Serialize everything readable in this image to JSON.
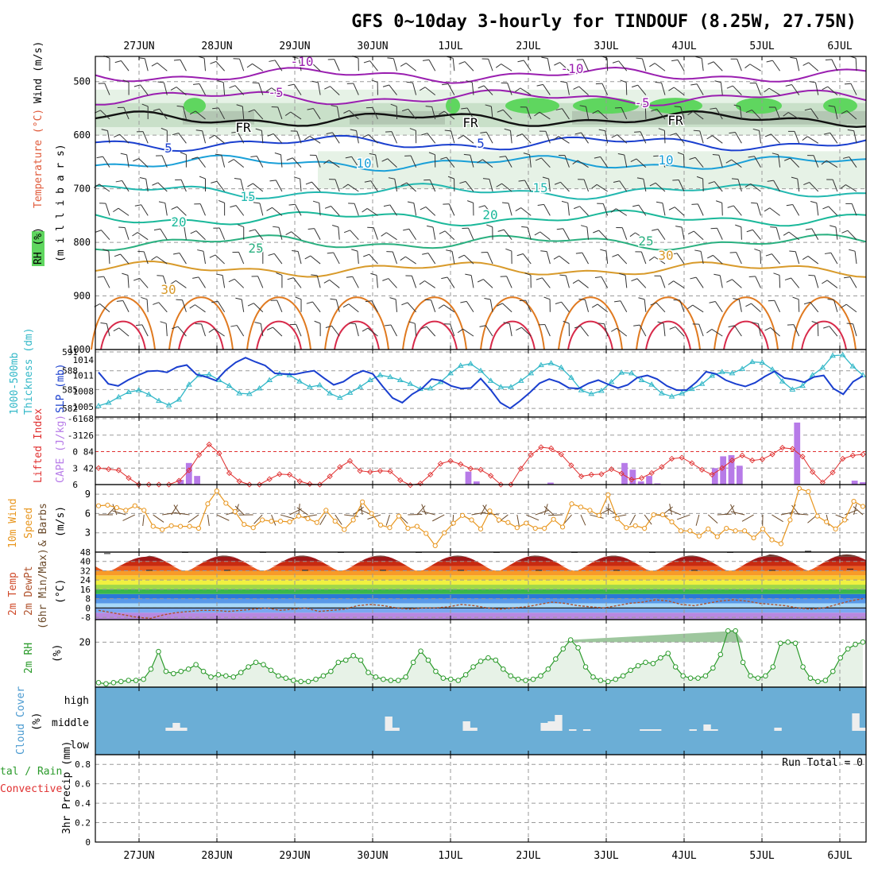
{
  "title": "GFS 0~10day 3-hourly for TINDOUF (8.25W, 27.75N)",
  "date_labels": [
    "27JUN",
    "28JUN",
    "29JUN",
    "30JUN",
    "1JUL",
    "2JUL",
    "3JUL",
    "4JUL",
    "5JUL",
    "6JUL"
  ],
  "colors": {
    "grid": "#9a9a9a",
    "rh_light": "#e6f2e6",
    "rh_mid": "#c9e0c9",
    "rh_dark": "#a9bca9",
    "rh_green": "#5fd65f",
    "cloud_bg": "#6baed6",
    "cloud_bar": "#eeeeee",
    "lifted_index": "#e03030",
    "cape": "#b77be8",
    "thickness": "#33b8c8",
    "slp": "#1a3fcf",
    "wind10m": "#e8961e",
    "barb": "#6b4a2a",
    "rh2m": "#2a9a2a",
    "rh2m_fill": "#e7f2e7",
    "dewpoint": "#b0502a"
  },
  "panel_labels": {
    "upper_rh": "RH (%)",
    "upper_temp": "Temperature (°C)",
    "upper_wind": "Wind (m/s)",
    "upper_axis": "(m i l l i b a r s)",
    "thick_a": "1000-500mb",
    "thick_b": "Thickness (dm)",
    "slp": "SLP (mb)",
    "li": "Lifted Index",
    "cape": "CAPE (J/kg)",
    "wind_a": "10m Wind",
    "wind_b": "Speed",
    "wind_c": "& Barbs",
    "wind_unit": "(m/s)",
    "temp_a": "2m Temp",
    "temp_b": "2m DewPt",
    "temp_c": "(6hr Min/Max)",
    "temp_unit": "(°C)",
    "rh2m": "2m RH",
    "rh2m_unit": "(%)",
    "cloud": "Cloud Cover",
    "cloud_unit": "(%)",
    "precip_a": "tal / Rain",
    "precip_b": "Convective",
    "precip_c": "3hr Precip (mm)",
    "run_total": "Run Total = 0"
  },
  "chart_data": [
    {
      "type": "line",
      "panel": "upper-air cross section",
      "ylabel": "(millibars)",
      "y_ticks": [
        500,
        600,
        700,
        800,
        900,
        1000
      ],
      "ylim": [
        1000,
        450
      ],
      "x": [
        "27JUN",
        "28JUN",
        "29JUN",
        "30JUN",
        "1JUL",
        "2JUL",
        "3JUL",
        "4JUL",
        "5JUL",
        "6JUL"
      ],
      "isotherm_labels": [
        "-10",
        "-10",
        "-5",
        "-5",
        "FR",
        "FR",
        "FR",
        "5",
        "5",
        "10",
        "10",
        "15",
        "15",
        "20",
        "20",
        "25",
        "25",
        "30",
        "30",
        "30",
        "30",
        "30",
        "30",
        "30"
      ],
      "isotherms_mb": [
        {
          "name": "-10",
          "level": 488
        },
        {
          "name": "-5",
          "level": 530
        },
        {
          "name": "FR",
          "level": 570
        },
        {
          "name": "5",
          "level": 615
        },
        {
          "name": "10",
          "level": 652
        },
        {
          "name": "15",
          "level": 705
        },
        {
          "name": "20",
          "level": 755
        },
        {
          "name": "25",
          "level": 800
        },
        {
          "name": "30",
          "level": 850
        }
      ]
    },
    {
      "type": "line",
      "panel": "thickness and SLP",
      "ylabel": "1000-500mb Thickness (dm) / SLP (mb)",
      "left_ticks": [
        "591",
        "588",
        "585",
        "582"
      ],
      "right_ticks": [
        "1014",
        "1011",
        "1008",
        "1005"
      ],
      "series": [
        {
          "name": "Thickness",
          "values": [
            582.4,
            582.9,
            583.8,
            584.6,
            584.9,
            584.2,
            583.2,
            582.5,
            583.4,
            585.8,
            587.3,
            587.4,
            586.5,
            585.6,
            584.4,
            584.3,
            585.2,
            586.5,
            587.5,
            587.3,
            586.3,
            585.4,
            585.7,
            584.4,
            583.7,
            584.5,
            585.4,
            586.5,
            587.3,
            587.0,
            586.5,
            585.9,
            585.1,
            585.2,
            586.2,
            587.6,
            588.8,
            589.1,
            588.0,
            586.4,
            585.4,
            585.4,
            586.4,
            587.6,
            588.9,
            589.2,
            588.5,
            586.9,
            584.9,
            584.3,
            584.8,
            586.2,
            587.7,
            587.6,
            586.5,
            585.8,
            584.4,
            583.9,
            584.4,
            585.1,
            585.9,
            587.2,
            587.8,
            587.6,
            588.3,
            589.4,
            589.3,
            588.2,
            586.3,
            585.0,
            585.6,
            587.3,
            588.5,
            590.4,
            590.5,
            588.7,
            587.3
          ]
        },
        {
          "name": "SLP",
          "values": [
            1011.6,
            1009.4,
            1009.0,
            1010.1,
            1011.0,
            1011.8,
            1011.9,
            1011.6,
            1012.6,
            1013.0,
            1011.2,
            1010.7,
            1010.0,
            1012.0,
            1013.5,
            1014.4,
            1013.6,
            1012.9,
            1011.4,
            1011.3,
            1011.2,
            1011.6,
            1011.9,
            1010.5,
            1009.2,
            1009.8,
            1011.1,
            1011.9,
            1011.3,
            1008.9,
            1006.7,
            1005.8,
            1007.4,
            1008.5,
            1010.3,
            1010.0,
            1009.0,
            1008.5,
            1008.6,
            1010.4,
            1008.3,
            1005.8,
            1004.7,
            1006.1,
            1007.7,
            1009.5,
            1010.3,
            1009.7,
            1008.6,
            1008.5,
            1009.5,
            1010.1,
            1009.3,
            1008.6,
            1009.2,
            1010.6,
            1011.0,
            1010.3,
            1009.0,
            1008.2,
            1008.2,
            1009.7,
            1011.7,
            1011.3,
            1010.1,
            1009.4,
            1008.9,
            1009.6,
            1010.8,
            1011.8,
            1010.5,
            1010.2,
            1009.7,
            1010.7,
            1011.0,
            1008.5,
            1007.4,
            1009.8,
            1010.9
          ]
        }
      ]
    },
    {
      "type": "bar",
      "panel": "lifted index and CAPE",
      "ylabel": "Lifted Index / CAPE (J/kg)",
      "left_ticks": [
        "-6",
        "-3",
        "0",
        "3",
        "6"
      ],
      "right_ticks": [
        "168",
        "126",
        "84",
        "42"
      ],
      "li_range": [
        -6,
        6
      ],
      "cape_range": [
        0,
        168
      ],
      "lifted_index": [
        3.0,
        3.2,
        3.4,
        4.8,
        6.0,
        6.0,
        6.0,
        6.0,
        5.3,
        3.4,
        0.6,
        -1.3,
        0.3,
        3.9,
        5.4,
        6.0,
        6.0,
        5.0,
        4.1,
        4.2,
        5.4,
        5.9,
        6.0,
        4.5,
        2.8,
        1.7,
        3.5,
        3.7,
        3.5,
        3.6,
        5.2,
        6.1,
        5.8,
        4.2,
        2.2,
        1.7,
        2.3,
        3.1,
        3.3,
        4.4,
        6.0,
        6.0,
        3.1,
        0.6,
        -0.8,
        -0.6,
        0.5,
        2.5,
        4.5,
        4.2,
        4.1,
        3.2,
        4.0,
        5.1,
        4.8,
        3.9,
        2.8,
        1.3,
        1.1,
        2.1,
        3.3,
        4.2,
        3.0,
        1.6,
        0.7,
        1.6,
        1.4,
        0.5,
        -0.7,
        -0.5,
        0.9,
        3.7,
        5.6,
        3.8,
        1.3,
        0.7,
        0.5
      ],
      "cape": [
        0,
        0,
        0,
        0,
        0,
        0,
        0,
        0,
        0,
        0,
        12,
        55,
        22,
        0,
        0,
        0,
        0,
        0,
        0,
        0,
        0,
        0,
        0,
        0,
        0,
        0,
        0,
        0,
        0,
        0,
        0,
        0,
        0,
        0,
        0,
        0,
        0,
        0,
        0,
        0,
        0,
        0,
        0,
        0,
        0,
        33,
        8,
        0,
        0,
        0,
        0,
        0,
        0,
        0,
        0,
        5,
        0,
        0,
        0,
        0,
        0,
        0,
        0,
        0,
        55,
        38,
        8,
        22,
        3,
        0,
        0,
        0,
        0,
        0,
        0,
        42,
        72,
        75,
        48,
        0,
        0,
        0,
        0,
        0,
        0,
        158,
        0,
        0,
        0,
        0,
        0,
        0,
        10,
        6
      ]
    },
    {
      "type": "line",
      "panel": "10m wind speed",
      "ylabel": "10m Wind Speed & Barbs (m/s)",
      "y_ticks": [
        3,
        6,
        9
      ],
      "ylim": [
        0,
        10.5
      ],
      "values": [
        7.2,
        7.3,
        6.9,
        6.5,
        7.2,
        6.5,
        4.0,
        3.5,
        4.1,
        4.0,
        4.0,
        3.7,
        7.5,
        9.5,
        7.6,
        6.3,
        4.3,
        3.8,
        5.0,
        4.8,
        4.8,
        4.7,
        5.6,
        5.2,
        4.6,
        6.5,
        4.8,
        3.5,
        5.0,
        7.8,
        6.0,
        4.2,
        3.8,
        5.6,
        3.7,
        4.0,
        2.9,
        1.0,
        3.0,
        4.5,
        5.7,
        5.0,
        3.6,
        6.4,
        5.0,
        4.6,
        3.8,
        4.5,
        3.7,
        3.7,
        5.1,
        3.9,
        7.5,
        7.0,
        6.5,
        5.7,
        8.9,
        5.2,
        3.8,
        4.1,
        3.7,
        5.8,
        5.8,
        4.7,
        3.3,
        3.3,
        2.5,
        3.6,
        2.4,
        3.7,
        3.3,
        3.3,
        2.2,
        3.6,
        1.9,
        1.3,
        5.0,
        9.9,
        9.4,
        5.6,
        4.7,
        3.6,
        5.0,
        7.9,
        7.1
      ]
    },
    {
      "type": "area",
      "panel": "2m temperature and dewpoint",
      "ylabel": "2m Temp / 2m DewPt (6hr Min/Max) (°C)",
      "y_ticks": [
        "48",
        "40",
        "32",
        "24",
        "16",
        "8",
        "0",
        "-8"
      ],
      "ylim": [
        -10,
        48
      ],
      "daily_temperature": [
        {
          "day": "27JUN",
          "max": 44,
          "min": 31
        },
        {
          "day": "28JUN",
          "max": 45,
          "min": 31
        },
        {
          "day": "29JUN",
          "max": 45,
          "min": 31
        },
        {
          "day": "30JUN",
          "max": 45,
          "min": 31
        },
        {
          "day": "1JUL",
          "max": 45,
          "min": 31
        },
        {
          "day": "2JUL",
          "max": 45,
          "min": 31
        },
        {
          "day": "3JUL",
          "max": 45,
          "min": 31
        },
        {
          "day": "4JUL",
          "max": 45,
          "min": 31
        },
        {
          "day": "5JUL",
          "max": 45,
          "min": 31
        },
        {
          "day": "6JUL",
          "max": 46,
          "min": 32
        }
      ],
      "dewpoint": [
        -2,
        -4,
        -6,
        -8,
        -9,
        -6,
        -4,
        -3,
        -2,
        -2,
        -3,
        -2,
        -1,
        0,
        -2,
        -1,
        0,
        -3,
        -2,
        -1,
        2,
        3,
        2,
        0,
        -1,
        0,
        0,
        1,
        3,
        2,
        0,
        -1,
        0,
        1,
        3,
        5,
        4,
        2,
        1,
        0,
        2,
        4,
        5,
        7,
        6,
        3,
        2,
        4,
        6,
        7,
        6,
        4,
        3,
        2,
        0,
        -1,
        0,
        3,
        6,
        8
      ]
    },
    {
      "type": "area",
      "panel": "2m relative humidity",
      "ylabel": "2m RH (%)",
      "y_ticks": [
        20
      ],
      "ylim": [
        0,
        30
      ],
      "values": [
        2.0,
        1.5,
        2.0,
        2.5,
        3.0,
        3.0,
        3.5,
        8.0,
        15.8,
        7.0,
        6.0,
        7.0,
        8.0,
        10.0,
        7.0,
        4.5,
        5.5,
        5.0,
        4.5,
        6.5,
        9.0,
        11.0,
        10.0,
        7.5,
        5.0,
        4.0,
        3.0,
        2.5,
        2.5,
        3.5,
        5.0,
        7.0,
        11.0,
        12.0,
        14.0,
        12.0,
        6.5,
        4.5,
        3.5,
        3.0,
        3.0,
        4.5,
        11.0,
        16.0,
        12.0,
        7.0,
        4.0,
        3.5,
        3.0,
        5.5,
        9.0,
        11.5,
        13.0,
        12.0,
        8.0,
        5.0,
        3.5,
        3.0,
        3.5,
        5.0,
        8.0,
        12.5,
        17.0,
        21.0,
        17.5,
        9.0,
        4.5,
        3.0,
        2.5,
        3.5,
        5.0,
        7.5,
        9.5,
        11.0,
        10.5,
        13.0,
        15.0,
        9.0,
        5.0,
        4.0,
        4.0,
        5.0,
        8.5,
        14.5,
        25.0,
        25.0,
        11.0,
        5.0,
        4.0,
        5.0,
        9.0,
        19.5,
        20.0,
        19.5,
        9.0,
        4.0,
        2.5,
        3.0,
        7.0,
        13.0,
        17.0,
        19.0,
        20.0
      ]
    },
    {
      "type": "bar",
      "panel": "cloud cover",
      "ylabel": "Cloud Cover (%)",
      "y_ticks": [
        "high",
        "middle",
        "low"
      ],
      "middle": [
        0,
        0,
        0,
        0,
        0,
        0,
        0,
        0,
        0,
        0,
        4,
        10,
        4,
        0,
        0,
        0,
        0,
        0,
        0,
        0,
        0,
        0,
        0,
        0,
        0,
        0,
        0,
        0,
        0,
        0,
        0,
        0,
        0,
        0,
        0,
        0,
        0,
        0,
        0,
        0,
        0,
        18,
        4,
        0,
        0,
        0,
        0,
        0,
        0,
        0,
        0,
        0,
        12,
        4,
        0,
        0,
        0,
        0,
        0,
        0,
        0,
        0,
        0,
        10,
        12,
        20,
        0,
        2,
        0,
        2,
        0,
        0,
        0,
        0,
        0,
        0,
        0,
        2,
        2,
        2,
        0,
        0,
        0,
        0,
        2,
        0,
        8,
        2,
        0,
        0,
        0,
        0,
        0,
        0,
        0,
        0,
        4,
        0,
        0,
        0,
        0,
        0,
        0,
        0,
        0,
        0,
        0,
        22,
        4
      ]
    },
    {
      "type": "bar",
      "panel": "3hr precipitation",
      "ylabel": "3hr Precip (mm)",
      "y_ticks": [
        "0.8",
        "0.6",
        "0.4",
        "0.2",
        "0"
      ],
      "ylim": [
        0,
        0.9
      ],
      "values": [],
      "annotation": "Run Total = 0"
    }
  ]
}
